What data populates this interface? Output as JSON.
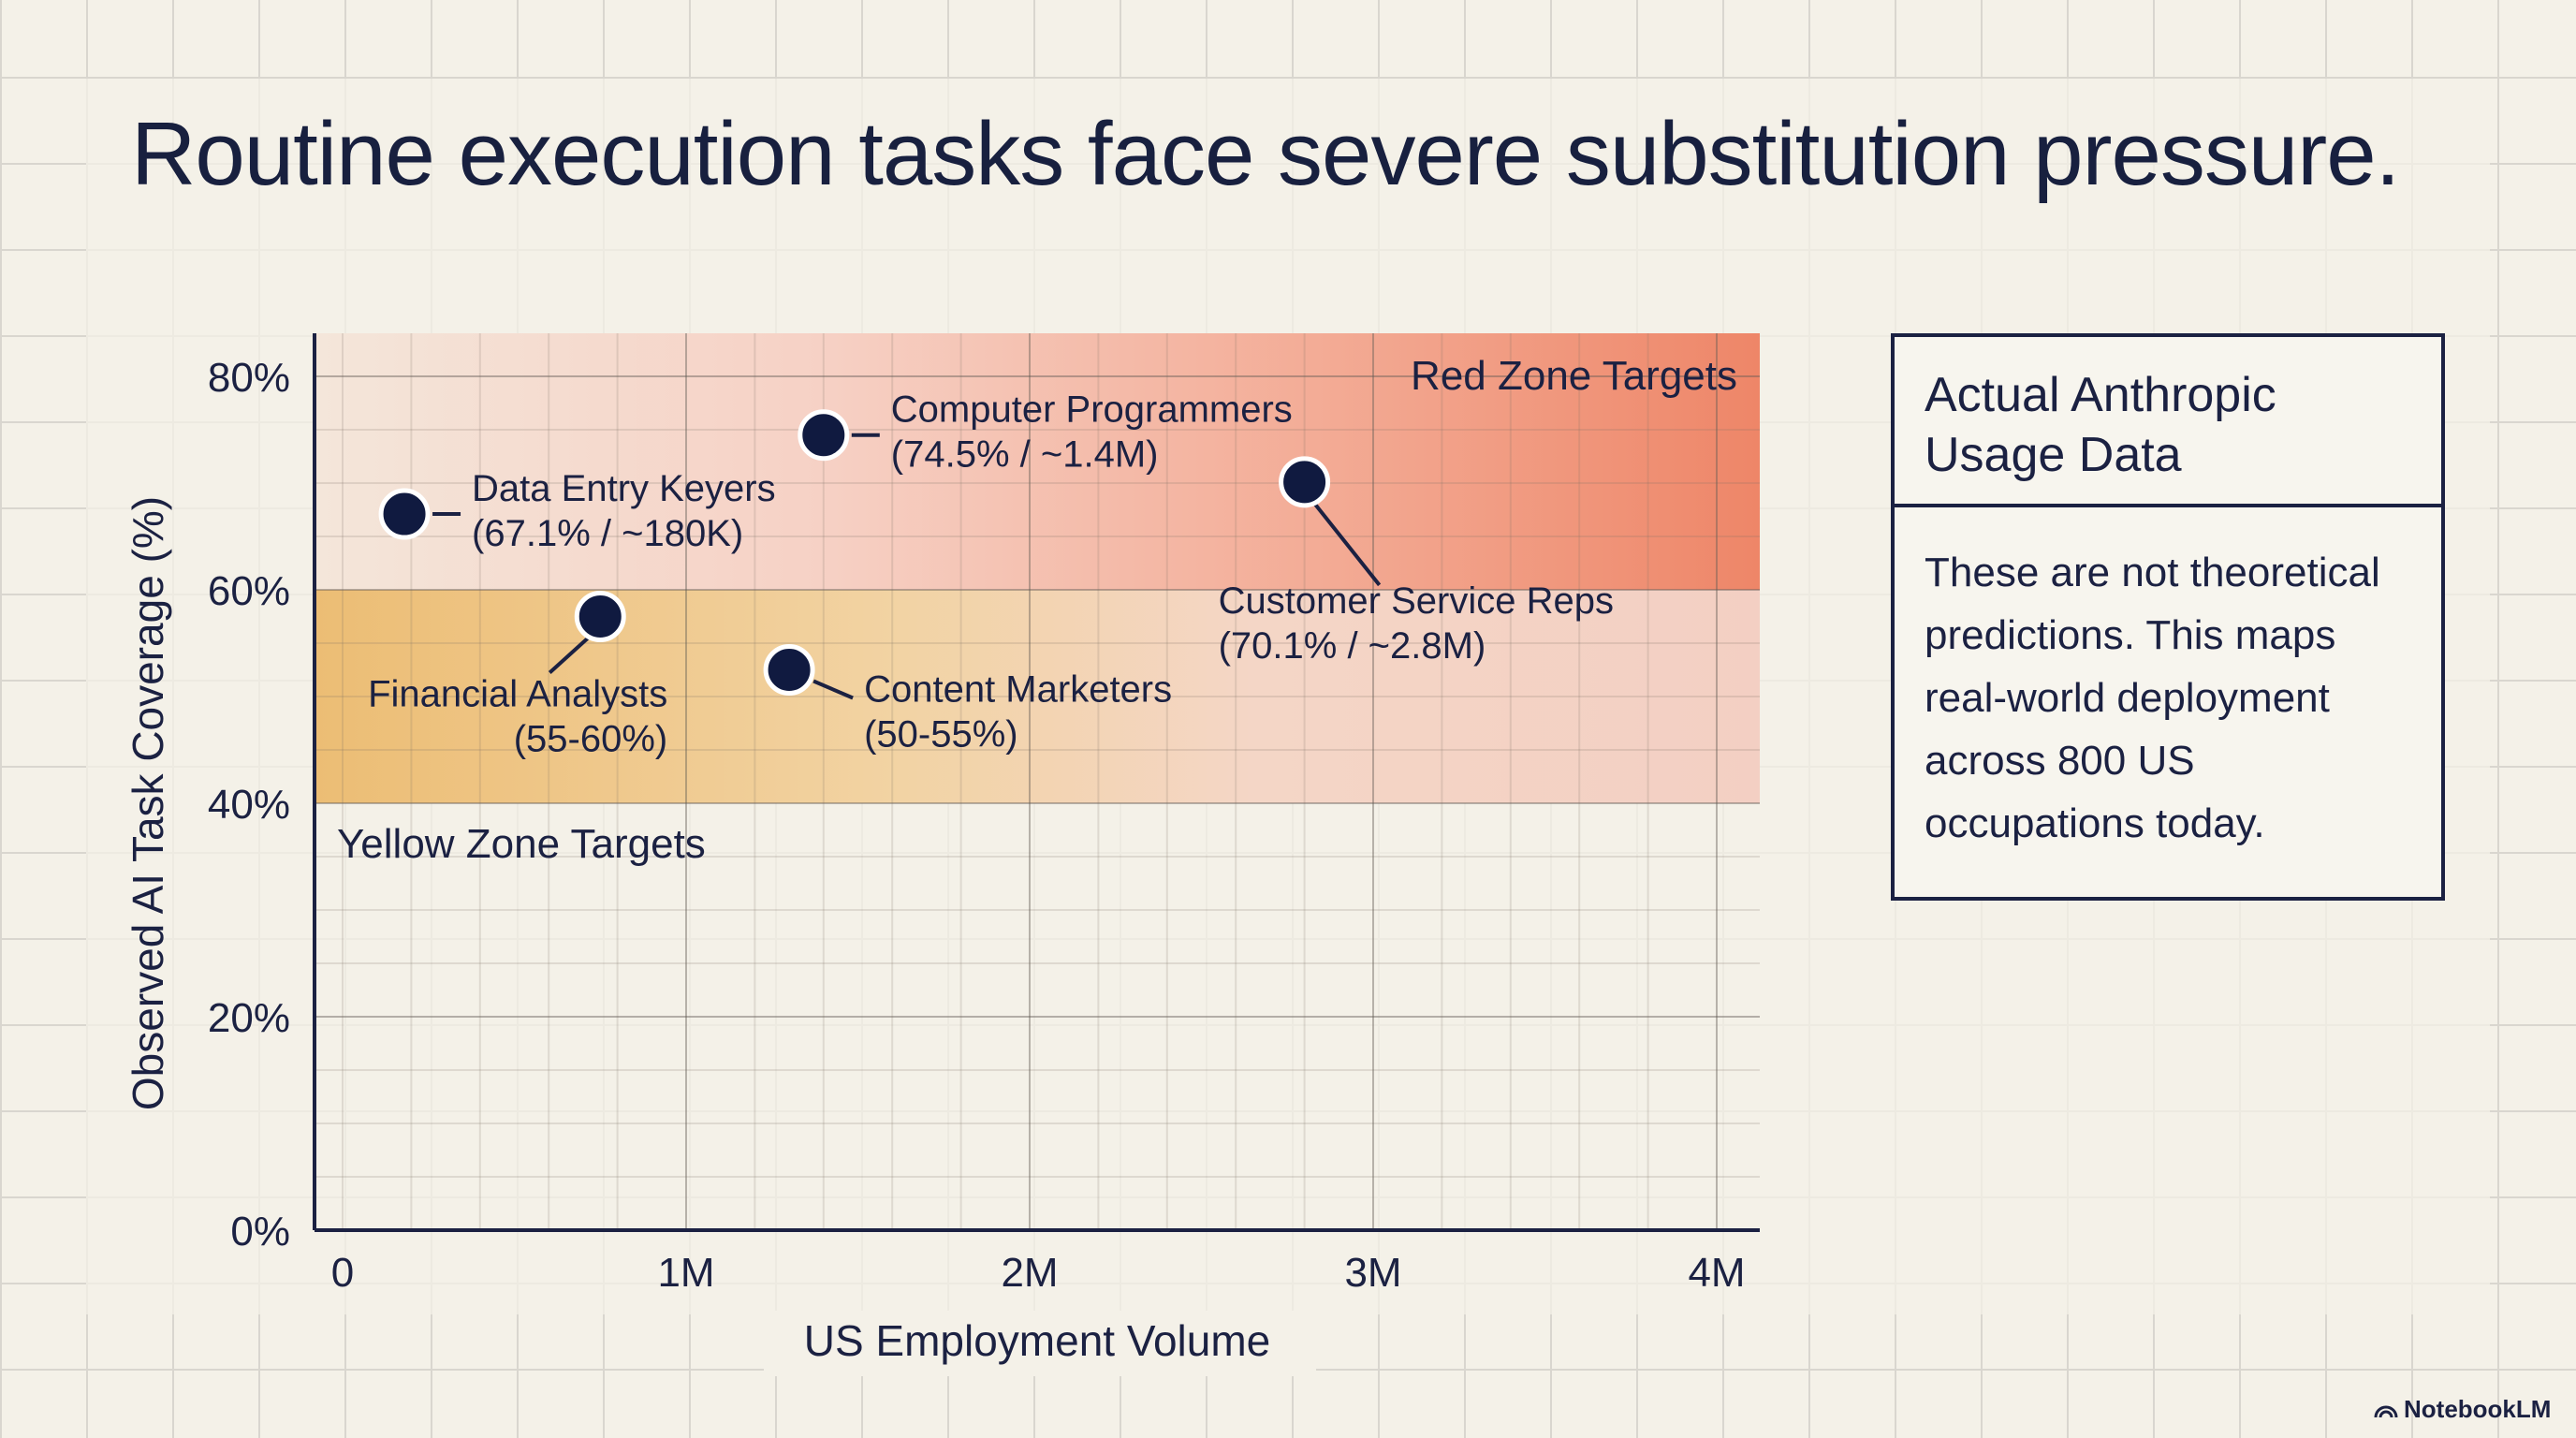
{
  "title": "Routine execution tasks face severe substitution pressure.",
  "chart_data": {
    "type": "scatter",
    "title": "",
    "xlabel": "US Employment Volume",
    "ylabel": "Observed AI Task Coverage (%)",
    "xlim": [
      0,
      4000000
    ],
    "ylim": [
      0,
      80
    ],
    "x_ticks": [
      0,
      1000000,
      2000000,
      3000000,
      4000000
    ],
    "x_tick_labels": [
      "0",
      "1M",
      "2M",
      "3M",
      "4M"
    ],
    "y_ticks": [
      0,
      20,
      40,
      60,
      80
    ],
    "y_tick_labels": [
      "0%",
      "20%",
      "40%",
      "60%",
      "80%"
    ],
    "grid": true,
    "zones": [
      {
        "name": "Red Zone Targets",
        "y_range": [
          60,
          85
        ],
        "color": "#ef8f74"
      },
      {
        "name": "Yellow Zone Targets",
        "y_range": [
          40,
          60
        ],
        "color": "#f0c98c"
      }
    ],
    "points": [
      {
        "label": "Data Entry Keyers",
        "detail": "(67.1% / ~180K)",
        "x": 180000,
        "y": 67.1
      },
      {
        "label": "Computer Programmers",
        "detail": "(74.5% / ~1.4M)",
        "x": 1400000,
        "y": 74.5
      },
      {
        "label": "Customer Service Reps",
        "detail": "(70.1% / ~2.8M)",
        "x": 2800000,
        "y": 70.1
      },
      {
        "label": "Financial Analysts",
        "detail": "(55-60%)",
        "x": 750000,
        "y": 57.5
      },
      {
        "label": "Content Marketers",
        "detail": "(50-55%)",
        "x": 1300000,
        "y": 52.5
      }
    ],
    "point_color": "#101a40"
  },
  "info": {
    "heading": "Actual Anthropic Usage Data",
    "body": "These are not theoretical predictions. This maps real-world deployment across 800 US occupations today."
  },
  "badge": "NotebookLM"
}
